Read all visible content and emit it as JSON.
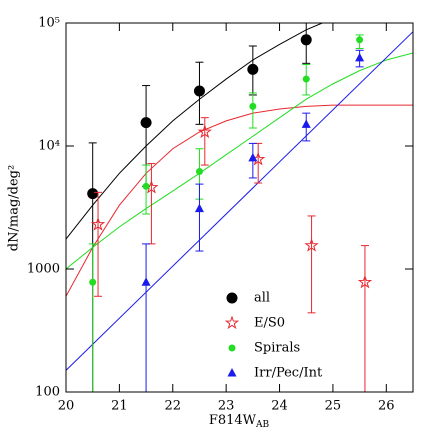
{
  "chart_data": {
    "type": "scatter",
    "log_y": true,
    "xlabel": "F814W",
    "xlabel_sub": "AB",
    "ylabel": "dN/mag/deg²",
    "xlim": [
      20,
      26.5
    ],
    "xticks": [
      20,
      21,
      22,
      23,
      24,
      25,
      26
    ],
    "ylim": [
      100,
      100000
    ],
    "yticks": [
      100,
      1000,
      {
        "value": 10000,
        "label": "10⁴"
      },
      {
        "value": 100000,
        "label": "10⁵"
      }
    ],
    "series": [
      {
        "name": "all",
        "color": "#000000",
        "marker": "circle",
        "x": [
          20.5,
          21.5,
          22.5,
          23.5,
          24.5
        ],
        "values": [
          4100,
          15500,
          28000,
          42000,
          73000
        ],
        "lower": [
          100,
          4700,
          15000,
          26000,
          47000
        ],
        "upper": [
          10600,
          31000,
          48000,
          65000,
          100000
        ]
      },
      {
        "name": "E/S0",
        "color": "#e8272f",
        "marker": "star",
        "x": [
          20.6,
          21.6,
          22.6,
          23.6,
          24.6,
          25.6
        ],
        "values": [
          2300,
          4600,
          13000,
          7800,
          1550,
          780
        ],
        "lower": [
          600,
          1600,
          7000,
          5000,
          440,
          100
        ],
        "upper": [
          4200,
          7200,
          17000,
          10500,
          2700,
          1550
        ]
      },
      {
        "name": "Spirals",
        "color": "#22dd22",
        "marker": "dot",
        "x": [
          20.5,
          21.5,
          22.5,
          23.5,
          24.5,
          25.5
        ],
        "values": [
          780,
          4700,
          6200,
          21000,
          35000,
          73000
        ],
        "lower": [
          100,
          2800,
          3700,
          14000,
          26000,
          62000
        ],
        "upper": [
          1600,
          7000,
          9500,
          27000,
          46000,
          80000
        ]
      },
      {
        "name": "Irr/Pec/Int",
        "color": "#1a1aee",
        "marker": "triangle",
        "x": [
          21.5,
          22.5,
          23.5,
          24.5,
          25.5
        ],
        "values": [
          780,
          3100,
          8000,
          15000,
          52000
        ],
        "lower": [
          100,
          1400,
          5500,
          11000,
          44000
        ],
        "upper": [
          1600,
          4900,
          10500,
          18500,
          60000
        ]
      }
    ],
    "fits": [
      {
        "color": "#000000",
        "x": [
          20,
          20.5,
          21,
          21.5,
          22,
          22.5,
          23,
          23.5,
          24,
          24.5,
          24.8
        ],
        "values": [
          1750,
          3300,
          6000,
          10000,
          16000,
          24000,
          35000,
          50000,
          67000,
          88000,
          100000
        ]
      },
      {
        "color": "#e8272f",
        "x": [
          20,
          20.5,
          21,
          21.5,
          22,
          22.5,
          23,
          23.5,
          24,
          24.5,
          25,
          26.5
        ],
        "values": [
          600,
          1500,
          3300,
          6000,
          9500,
          13000,
          16000,
          18500,
          20000,
          21000,
          21500,
          21500
        ]
      },
      {
        "color": "#22dd22",
        "x": [
          20,
          20.5,
          21,
          21.5,
          22,
          22.5,
          23,
          23.5,
          24,
          24.5,
          25,
          25.5,
          26,
          26.5
        ],
        "values": [
          1000,
          1500,
          2200,
          3100,
          4300,
          6000,
          8500,
          12000,
          17000,
          24000,
          32000,
          41000,
          50000,
          57000
        ]
      },
      {
        "color": "#1a1aee",
        "x": [
          20,
          26.5
        ],
        "values": [
          150,
          85000
        ]
      }
    ]
  }
}
